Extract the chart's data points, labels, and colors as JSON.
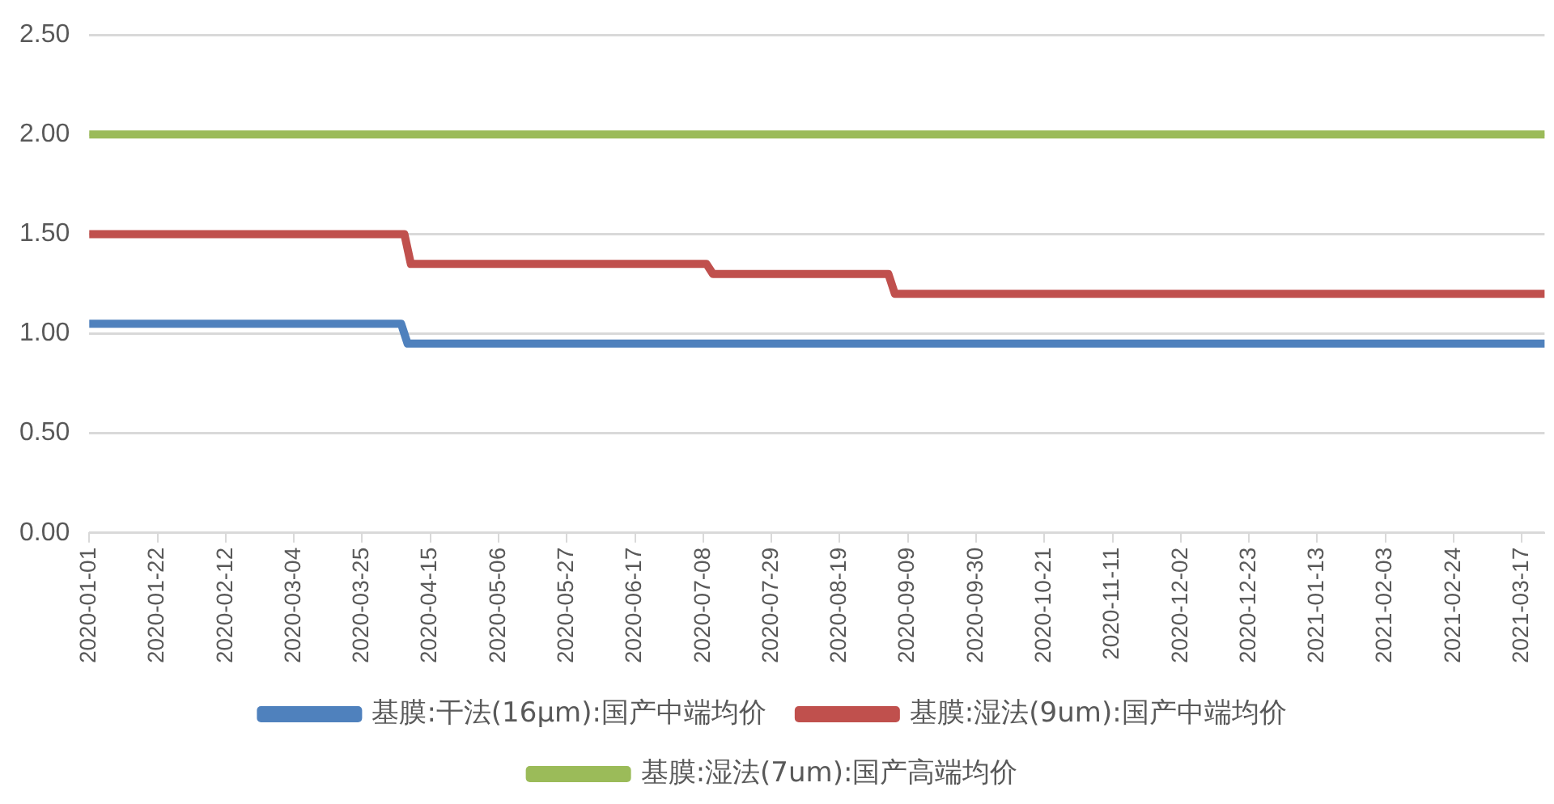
{
  "chart_data": {
    "type": "line",
    "xlim": [
      "2020-01-01",
      "2021-03-24"
    ],
    "xticks": [
      "2020-01-01",
      "2020-01-22",
      "2020-02-12",
      "2020-03-04",
      "2020-03-25",
      "2020-04-15",
      "2020-05-06",
      "2020-05-27",
      "2020-06-17",
      "2020-07-08",
      "2020-07-29",
      "2020-08-19",
      "2020-09-09",
      "2020-09-30",
      "2020-10-21",
      "2020-11-11",
      "2020-12-02",
      "2020-12-23",
      "2021-01-13",
      "2021-02-03",
      "2021-02-24",
      "2021-03-17"
    ],
    "ylim": [
      0,
      2.5
    ],
    "yticks": [
      {
        "value": 0,
        "label": "0.00"
      },
      {
        "value": 0.5,
        "label": "0.50"
      },
      {
        "value": 1,
        "label": "1.00"
      },
      {
        "value": 1.5,
        "label": "1.50"
      },
      {
        "value": 2,
        "label": "2.00"
      },
      {
        "value": 2.5,
        "label": "2.50"
      }
    ],
    "grid": "y",
    "legend": "bottom",
    "marker": "none",
    "line_style": "solid",
    "series": [
      {
        "name": "基膜:干法(16μm):国产中端均价",
        "color": "#4f81bd",
        "x": [
          "2020-01-01",
          "2020-04-06",
          "2020-04-08",
          "2021-03-24"
        ],
        "values": [
          1.05,
          1.05,
          0.95,
          0.95
        ]
      },
      {
        "name": "基膜:湿法(9um):国产中端均价",
        "color": "#c0504d",
        "x": [
          "2020-01-01",
          "2020-04-07",
          "2020-04-09",
          "2020-07-09",
          "2020-07-11",
          "2020-09-03",
          "2020-09-05",
          "2021-03-24"
        ],
        "values": [
          1.5,
          1.5,
          1.35,
          1.35,
          1.3,
          1.3,
          1.2,
          1.2
        ]
      },
      {
        "name": "基膜:湿法(7um):国产高端均价",
        "color": "#9bbb59",
        "x": [
          "2020-01-01",
          "2021-03-24"
        ],
        "values": [
          2,
          2
        ]
      }
    ]
  }
}
